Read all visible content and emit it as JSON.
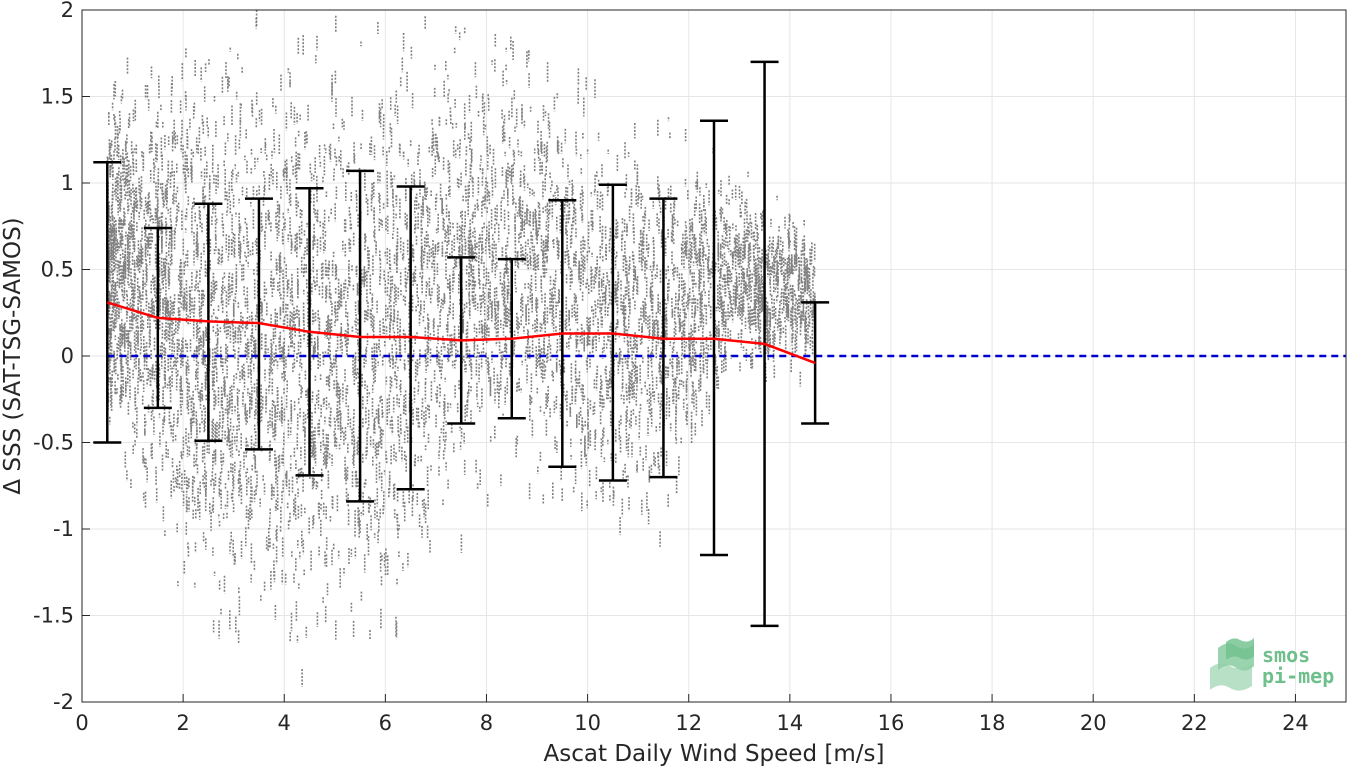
{
  "chart_data": {
    "type": "scatter",
    "title": "",
    "xlabel": "Ascat Daily Wind Speed [m/s]",
    "ylabel": "Δ SSS (SAT-TSG-SAMOS)",
    "xlim": [
      0,
      25
    ],
    "ylim": [
      -2,
      2
    ],
    "xticks": [
      0,
      2,
      4,
      6,
      8,
      10,
      12,
      14,
      16,
      18,
      20,
      22,
      24
    ],
    "yticks": [
      -2,
      -1.5,
      -1,
      -0.5,
      0,
      0.5,
      1,
      1.5,
      2
    ],
    "ytick_labels": [
      "-2",
      "-1.5",
      "-1",
      "-0.5",
      "0",
      "0.5",
      "1",
      "1.5",
      "2"
    ],
    "grid": true,
    "scatter_color": "#808080",
    "scatter_extent": {
      "x": [
        0.5,
        0.8,
        1.2,
        1.6,
        2.0,
        2.5,
        3.0,
        3.5,
        4.0,
        4.5,
        5.0,
        5.5,
        6.0,
        6.5,
        7.0,
        7.5,
        8.0,
        8.5,
        9.0,
        9.5,
        10.0,
        10.5,
        11.0,
        11.5,
        12.0,
        12.5,
        13.0,
        13.5,
        14.0,
        14.5
      ],
      "low": [
        -0.7,
        -0.9,
        -1.2,
        -1.4,
        -1.9,
        -2.0,
        -2.0,
        -2.0,
        -2.0,
        -2.0,
        -2.0,
        -2.0,
        -2.0,
        -1.8,
        -1.4,
        -1.2,
        -1.1,
        -1.0,
        -1.0,
        -1.3,
        -1.3,
        -1.3,
        -1.3,
        -1.3,
        -0.9,
        -0.5,
        -0.3,
        -0.4,
        -0.3,
        -0.2
      ],
      "high": [
        1.6,
        1.7,
        1.8,
        1.9,
        2.0,
        2.0,
        2.0,
        2.0,
        2.0,
        2.0,
        2.0,
        2.0,
        2.0,
        2.0,
        2.0,
        2.0,
        2.0,
        2.0,
        1.9,
        1.8,
        1.6,
        1.6,
        1.5,
        1.4,
        1.3,
        1.2,
        1.1,
        1.0,
        0.9,
        0.7
      ]
    },
    "series": [
      {
        "color": "#ff0000",
        "style": "solid",
        "x": [
          0.5,
          1.5,
          2.5,
          3.5,
          4.5,
          5.5,
          6.5,
          7.5,
          8.5,
          9.5,
          10.5,
          11.5,
          12.5,
          13.5,
          14.5
        ],
        "y": [
          0.31,
          0.22,
          0.2,
          0.19,
          0.14,
          0.11,
          0.11,
          0.09,
          0.1,
          0.13,
          0.13,
          0.1,
          0.1,
          0.07,
          -0.04
        ]
      },
      {
        "color": "#0000cc",
        "style": "dashed",
        "x": [
          0.5,
          25
        ],
        "y": [
          0,
          0
        ]
      }
    ],
    "error_bars": {
      "color": "#000000",
      "x": [
        0.5,
        1.5,
        2.5,
        3.5,
        4.5,
        5.5,
        6.5,
        7.5,
        8.5,
        9.5,
        10.5,
        11.5,
        12.5,
        13.5,
        14.5
      ],
      "low": [
        -0.5,
        -0.3,
        -0.49,
        -0.54,
        -0.69,
        -0.84,
        -0.77,
        -0.39,
        -0.36,
        -0.64,
        -0.72,
        -0.7,
        -1.15,
        -1.56,
        -0.39
      ],
      "high": [
        1.12,
        0.74,
        0.88,
        0.91,
        0.97,
        1.07,
        0.98,
        0.57,
        0.56,
        0.9,
        0.99,
        0.91,
        1.36,
        1.7,
        0.31
      ]
    }
  },
  "logo": {
    "line1": "smos",
    "line2": "pi-mep",
    "color": "#6fbf8c"
  }
}
